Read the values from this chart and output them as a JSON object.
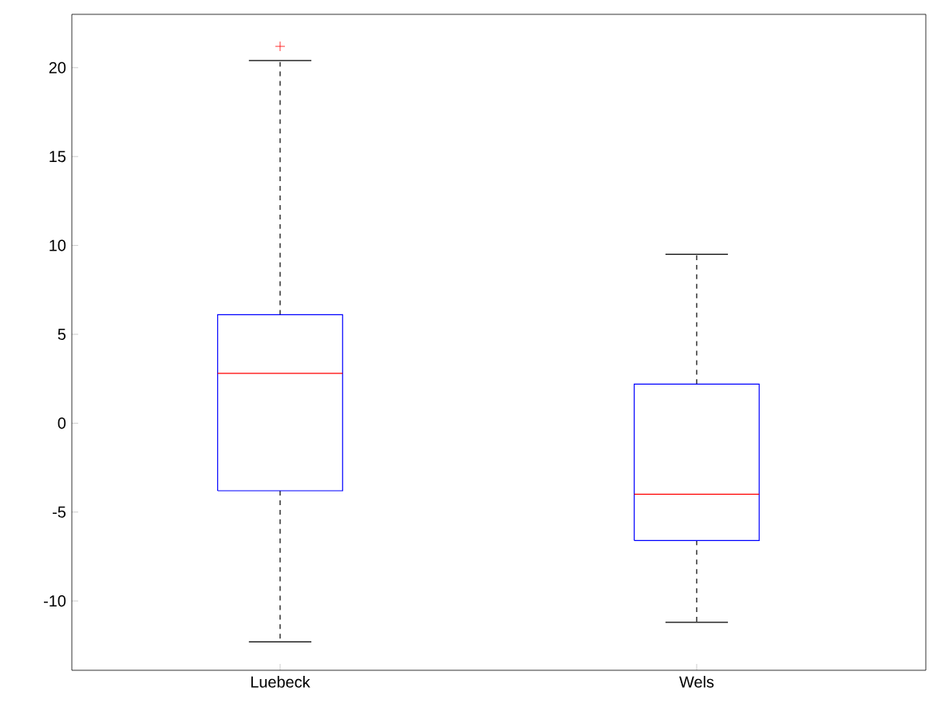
{
  "chart_data": {
    "type": "box",
    "categories": [
      "Luebeck",
      "Wels"
    ],
    "series": [
      {
        "color": "#0000ff",
        "boxes": [
          {
            "low": -12.3,
            "q1": -3.8,
            "median": 2.8,
            "q3": 6.1,
            "high": 20.4,
            "outliers": [
              21.2
            ]
          },
          {
            "low": -11.2,
            "q1": -6.6,
            "median": -4.0,
            "q3": 2.2,
            "high": 9.5
          }
        ]
      }
    ],
    "ylim": [
      -13.9,
      23
    ],
    "yticks": [
      -10,
      -5,
      0,
      5,
      10,
      15,
      20
    ],
    "marker": "cross",
    "line_style": "dashed"
  }
}
